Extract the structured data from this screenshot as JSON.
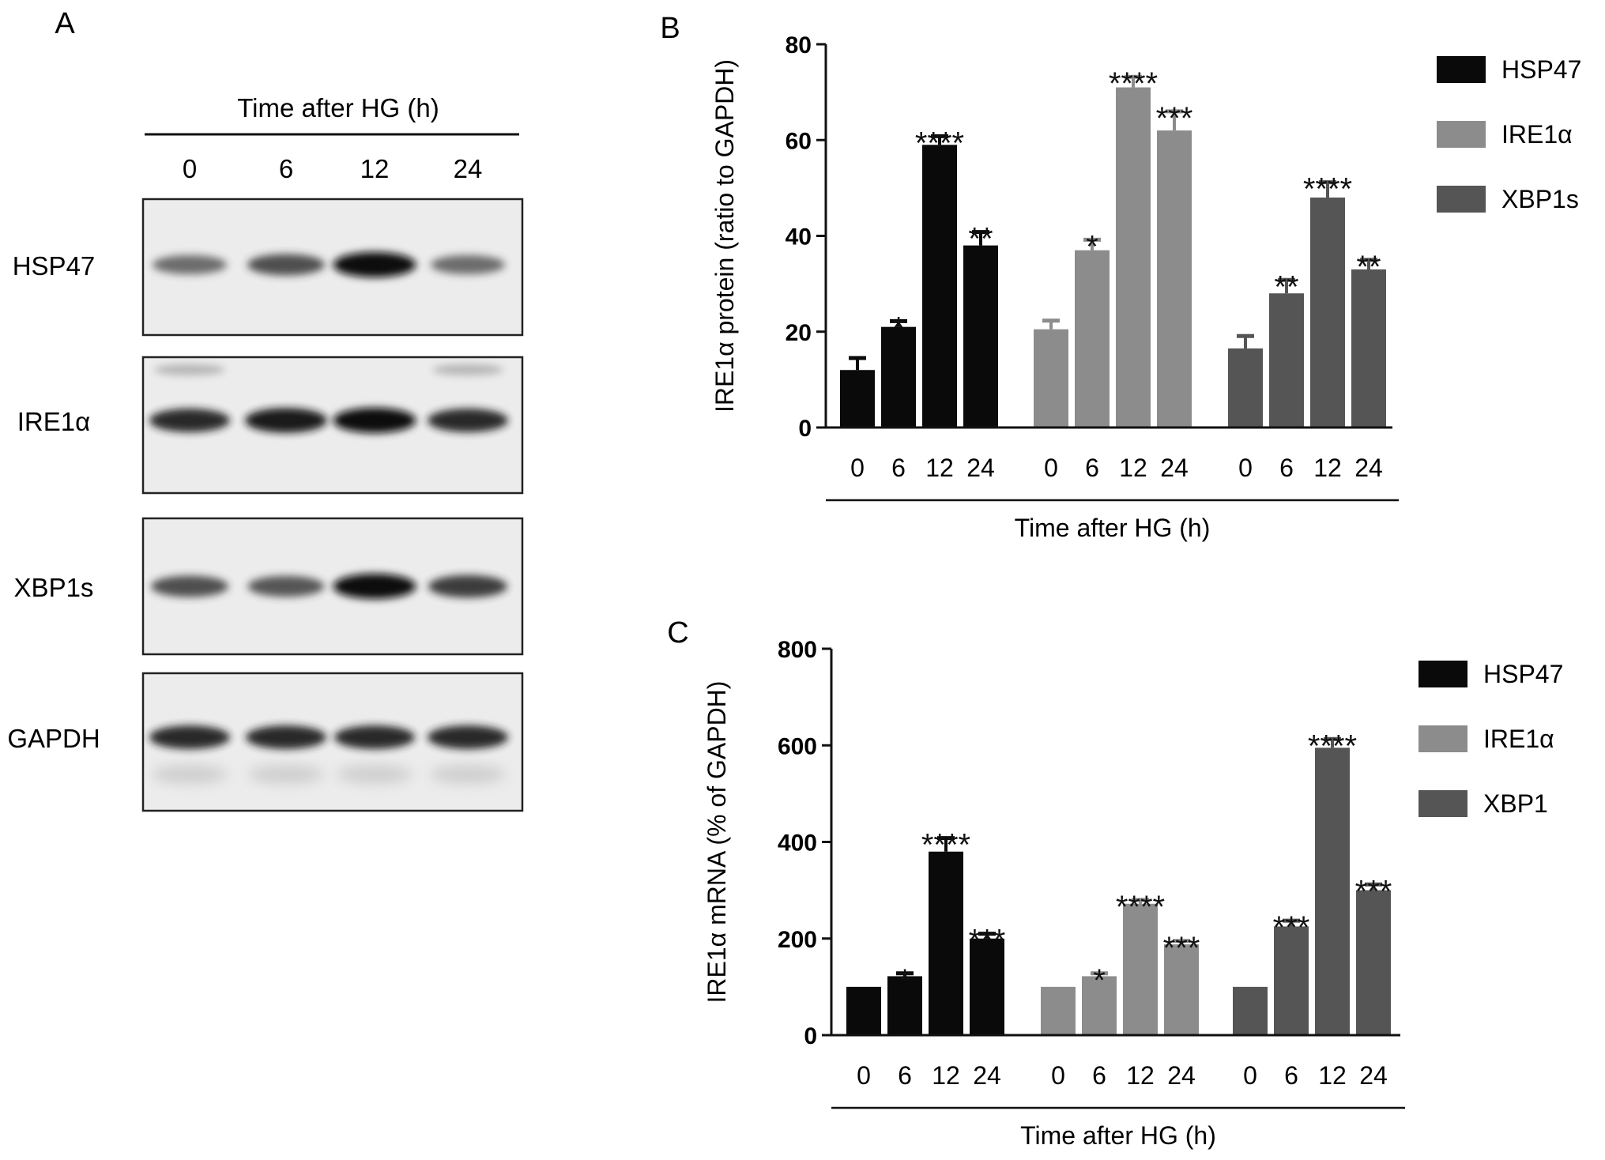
{
  "panel_labels": {
    "a": "A",
    "b": "B",
    "c": "C"
  },
  "colors": {
    "hsp47": "#0a0a0a",
    "ire1a": "#8c8c8c",
    "xbp1": "#555555",
    "axis": "#111111"
  },
  "western_blot": {
    "header": "Time after HG (h)",
    "lanes": [
      "0",
      "6",
      "12",
      "24"
    ],
    "rows": [
      {
        "label": "HSP47",
        "band_intensity": [
          0.45,
          0.65,
          1.0,
          0.45
        ]
      },
      {
        "label": "IRE1α",
        "band_intensity": [
          0.85,
          0.95,
          1.0,
          0.85
        ]
      },
      {
        "label": "XBP1s",
        "band_intensity": [
          0.65,
          0.6,
          1.0,
          0.75
        ]
      },
      {
        "label": "GAPDH",
        "band_intensity": [
          0.85,
          0.85,
          0.85,
          0.85
        ]
      }
    ]
  },
  "chart_data": [
    {
      "type": "bar",
      "panel": "B",
      "ylabel": "IRE1α protein (ratio to GAPDH)",
      "xlabel": "Time after HG (h)",
      "ylim": [
        0,
        80
      ],
      "yticks": [
        0,
        20,
        40,
        60,
        80
      ],
      "categories": [
        "0",
        "6",
        "12",
        "24"
      ],
      "legend_position": "top-right",
      "series": [
        {
          "name": "HSP47",
          "color": "#0a0a0a",
          "values": [
            12,
            21,
            59,
            38
          ],
          "errors": [
            2.5,
            1.2,
            1.8,
            2.8
          ],
          "significance": [
            "",
            "*",
            "****",
            "**"
          ]
        },
        {
          "name": "IRE1α",
          "color": "#8c8c8c",
          "values": [
            20.5,
            37,
            71,
            62
          ],
          "errors": [
            1.8,
            2.2,
            2.2,
            4.0
          ],
          "significance": [
            "",
            "*",
            "****",
            "***"
          ]
        },
        {
          "name": "XBP1s",
          "color": "#555555",
          "values": [
            16.5,
            28,
            48,
            33
          ],
          "errors": [
            2.6,
            2.8,
            3.2,
            2.0
          ],
          "significance": [
            "",
            "**",
            "****",
            "**"
          ]
        }
      ]
    },
    {
      "type": "bar",
      "panel": "C",
      "ylabel": "IRE1α mRNA (% of GAPDH)",
      "xlabel": "Time after HG (h)",
      "ylim": [
        0,
        800
      ],
      "yticks": [
        0,
        200,
        400,
        600,
        800
      ],
      "categories": [
        "0",
        "6",
        "12",
        "24"
      ],
      "legend_position": "top-right",
      "series": [
        {
          "name": "HSP47",
          "color": "#0a0a0a",
          "values": [
            100,
            122,
            380,
            200
          ],
          "errors": [
            0,
            6,
            28,
            10
          ],
          "significance": [
            "",
            "*",
            "****",
            "***"
          ]
        },
        {
          "name": "IRE1α",
          "color": "#8c8c8c",
          "values": [
            100,
            122,
            272,
            188
          ],
          "errors": [
            0,
            6,
            8,
            7
          ],
          "significance": [
            "",
            "*",
            "****",
            "***"
          ]
        },
        {
          "name": "XBP1",
          "color": "#555555",
          "values": [
            100,
            225,
            595,
            300
          ],
          "errors": [
            0,
            12,
            18,
            12
          ],
          "significance": [
            "",
            "***",
            "****",
            "***"
          ]
        }
      ]
    }
  ]
}
